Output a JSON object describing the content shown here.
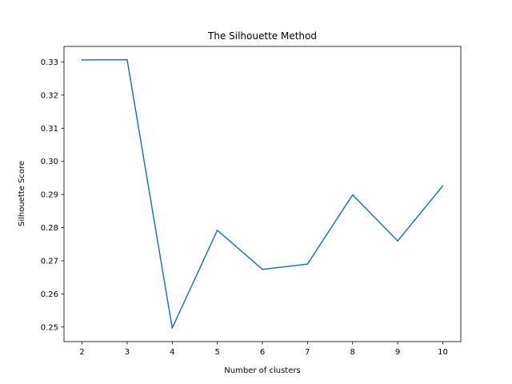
{
  "chart_data": {
    "type": "line",
    "title": "The Silhouette Method",
    "xlabel": "Number of clusters",
    "ylabel": "Silhouette Score",
    "x": [
      2,
      3,
      4,
      5,
      6,
      7,
      8,
      9,
      10
    ],
    "series": [
      {
        "values": [
          0.3306,
          0.3307,
          0.2497,
          0.2792,
          0.2674,
          0.269,
          0.2899,
          0.276,
          0.2926
        ],
        "color": "#1f77b4"
      }
    ],
    "xticks": [
      "2",
      "3",
      "4",
      "5",
      "6",
      "7",
      "8",
      "9",
      "10"
    ],
    "yticks": [
      "0.25",
      "0.26",
      "0.27",
      "0.28",
      "0.29",
      "0.30",
      "0.31",
      "0.32",
      "0.33"
    ],
    "xlim": [
      1.6,
      10.4
    ],
    "ylim": [
      0.2456,
      0.3347
    ],
    "grid": false,
    "legend": "none"
  }
}
